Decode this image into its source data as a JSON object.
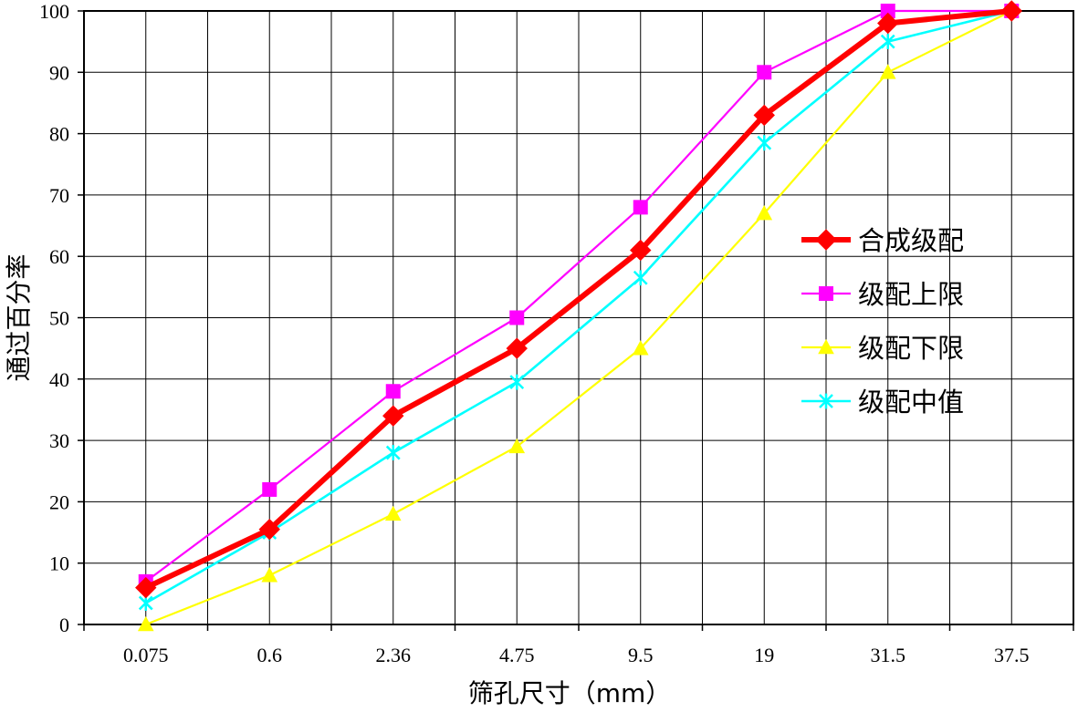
{
  "chart_data": {
    "type": "line",
    "xlabel": "筛孔尺寸（mm）",
    "ylabel": "通过百分率",
    "categories": [
      "0.075",
      "0.6",
      "2.36",
      "4.75",
      "9.5",
      "19",
      "31.5",
      "37.5"
    ],
    "ylim": [
      0,
      100
    ],
    "yticks": [
      "0",
      "10",
      "20",
      "30",
      "40",
      "50",
      "60",
      "70",
      "80",
      "90",
      "100"
    ],
    "grid": true,
    "legend_position": "right",
    "series": [
      {
        "name": "合成级配",
        "values": [
          6,
          15.5,
          34,
          45,
          61,
          83,
          98,
          100
        ],
        "color": "#ff0000",
        "marker": "diamond"
      },
      {
        "name": "级配上限",
        "values": [
          7,
          22,
          38,
          50,
          68,
          90,
          100,
          100
        ],
        "color": "#ff00ff",
        "marker": "square"
      },
      {
        "name": "级配下限",
        "values": [
          0,
          8,
          18,
          29,
          45,
          67,
          90,
          100
        ],
        "color": "#ffff00",
        "marker": "triangle"
      },
      {
        "name": "级配中值",
        "values": [
          3.5,
          15,
          28,
          39.5,
          56.5,
          78.5,
          95,
          100
        ],
        "color": "#00ffff",
        "marker": "x"
      }
    ]
  }
}
